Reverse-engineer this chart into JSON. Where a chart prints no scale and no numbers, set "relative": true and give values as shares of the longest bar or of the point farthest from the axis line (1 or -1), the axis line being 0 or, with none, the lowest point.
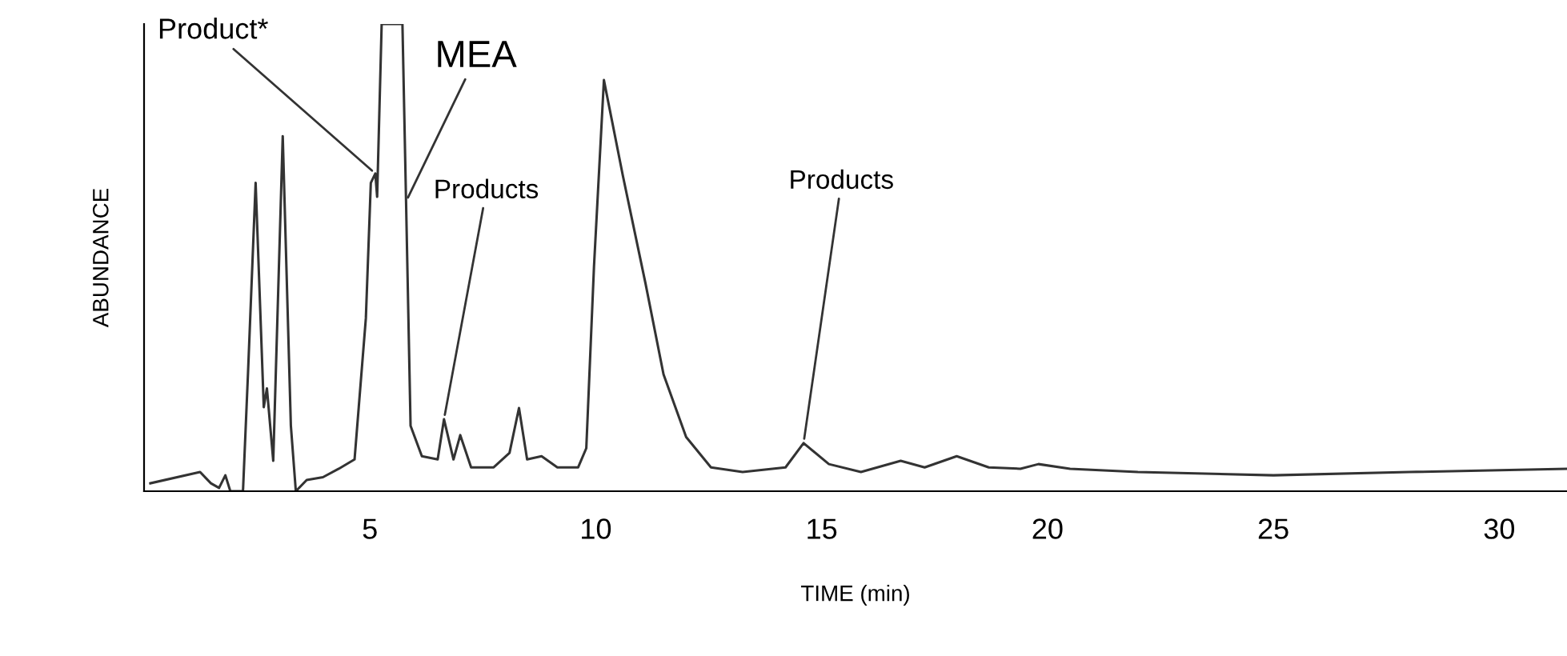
{
  "chart_data": {
    "type": "line",
    "relative": true,
    "xlabel": "TIME (min)",
    "ylabel": "ABUNDANCE",
    "xlim": [
      0,
      31.5
    ],
    "xticks": [
      5,
      10,
      15,
      20,
      25,
      30
    ],
    "grid": false,
    "legend": false,
    "marker": "none",
    "line_style": "solid",
    "series": [
      {
        "color": "#333333",
        "x": [
          0.14,
          1.24,
          1.48,
          1.66,
          1.8,
          1.91,
          2.19,
          2.3,
          2.47,
          2.65,
          2.72,
          2.86,
          3.07,
          3.25,
          3.36,
          3.6,
          3.96,
          4.31,
          4.66,
          4.91,
          5.02,
          5.12,
          5.16,
          5.26,
          5.72,
          5.8,
          5.9,
          6.15,
          6.5,
          6.64,
          6.85,
          7.0,
          7.24,
          7.74,
          8.09,
          8.3,
          8.48,
          8.8,
          9.15,
          9.61,
          9.79,
          9.96,
          10.18,
          10.6,
          11.1,
          11.5,
          12.0,
          12.55,
          13.25,
          14.2,
          14.6,
          15.16,
          15.87,
          16.75,
          17.28,
          17.99,
          18.7,
          19.4,
          19.8,
          20.5,
          22.0,
          25.0,
          28.0,
          31.5
        ],
        "values": [
          0.017,
          0.041,
          0.017,
          0.007,
          0.034,
          0,
          0,
          0.25,
          0.66,
          0.18,
          0.22,
          0.065,
          0.76,
          0.14,
          0,
          0.024,
          0.03,
          0.048,
          0.068,
          0.37,
          0.66,
          0.68,
          0.63,
          1,
          1,
          0.62,
          0.14,
          0.075,
          0.068,
          0.154,
          0.068,
          0.12,
          0.051,
          0.051,
          0.082,
          0.178,
          0.068,
          0.075,
          0.051,
          0.051,
          0.092,
          0.48,
          0.88,
          0.675,
          0.445,
          0.25,
          0.116,
          0.051,
          0.041,
          0.051,
          0.103,
          0.058,
          0.041,
          0.065,
          0.051,
          0.075,
          0.051,
          0.048,
          0.058,
          0.048,
          0.041,
          0.034,
          0.041,
          0.048
        ]
      }
    ],
    "annotations": [
      {
        "text": "Product*",
        "x": 5.12,
        "y": 0.68
      },
      {
        "text": "MEA",
        "x": 5.8,
        "y": 0.62
      },
      {
        "text": "Products",
        "x": 6.64,
        "y": 0.154
      },
      {
        "text": "Products",
        "x": 14.6,
        "y": 0.103
      }
    ]
  }
}
